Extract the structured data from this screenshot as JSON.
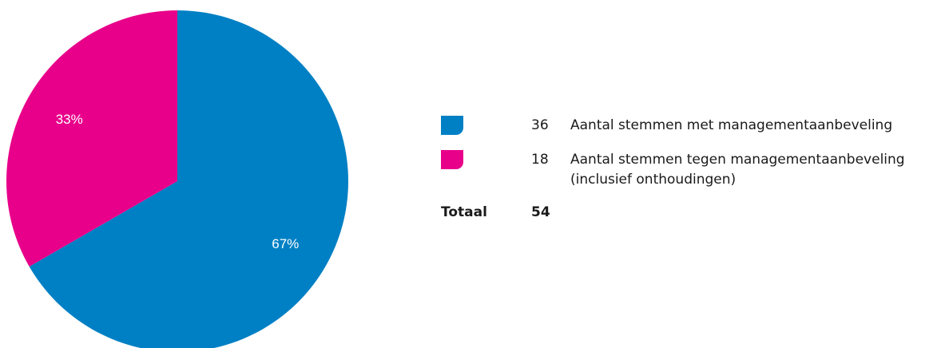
{
  "chart_data": {
    "type": "pie",
    "slices": [
      {
        "label": "Aantal stemmen met managementaanbeveling",
        "value": 36,
        "percent_label": "67%",
        "color": "#0080C4"
      },
      {
        "label": "Aantal stemmen tegen managementaanbeveling",
        "label_line2": "(inclusief onthoudingen)",
        "value": 18,
        "percent_label": "33%",
        "color": "#E8008A"
      }
    ],
    "total_label": "Totaal",
    "total_value": "54",
    "legend_position": "right"
  }
}
